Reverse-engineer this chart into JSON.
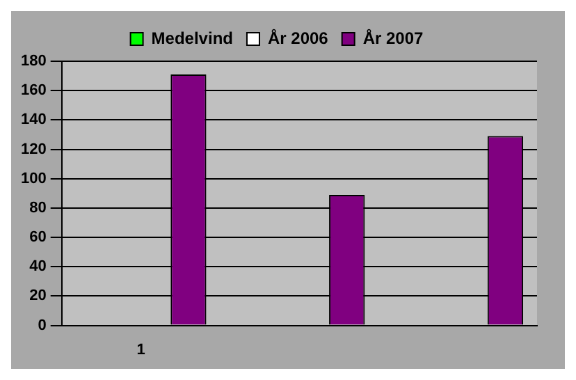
{
  "chart_data": {
    "type": "bar",
    "categories": [
      "1",
      null,
      null
    ],
    "series": [
      {
        "name": "Medelvind",
        "color": "#00ff00",
        "values": [
          0,
          null,
          null
        ]
      },
      {
        "name": "År 2006",
        "color": "#ffffff",
        "values": [
          0,
          null,
          null
        ]
      },
      {
        "name": "År 2007",
        "color": "#800080",
        "values": [
          171,
          89,
          129
        ]
      }
    ],
    "ylim": [
      0,
      180
    ],
    "yticks": [
      0,
      20,
      40,
      60,
      80,
      100,
      120,
      140,
      160,
      180
    ],
    "grid": "y",
    "legend": "top"
  }
}
